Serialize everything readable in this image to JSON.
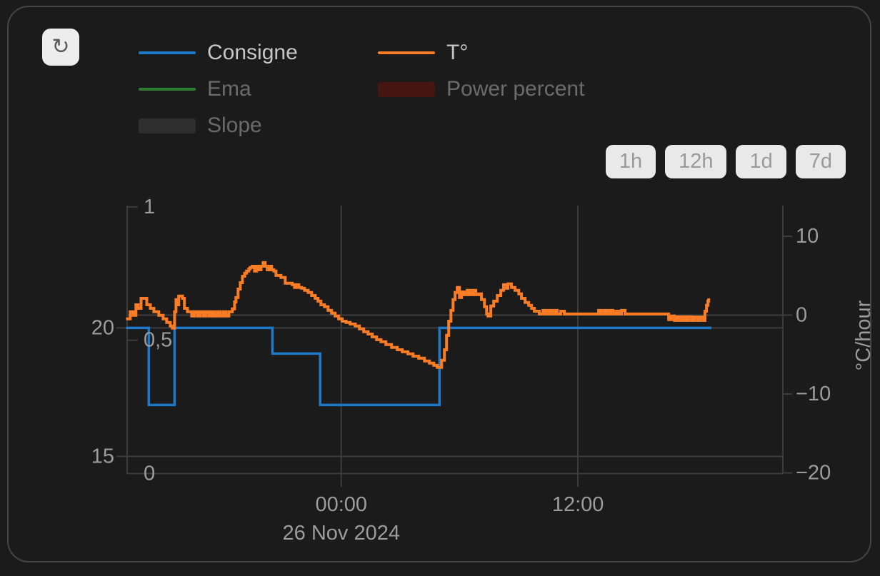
{
  "toolbar": {
    "refresh_icon": "↻"
  },
  "legend": {
    "items": [
      {
        "label": "Consigne",
        "color": "#1e79c8",
        "swatch": "line",
        "active": true
      },
      {
        "label": "T°",
        "color": "#fa7d26",
        "swatch": "line",
        "active": true
      },
      {
        "label": "Ema",
        "color": "#2f7d33",
        "swatch": "line",
        "active": false
      },
      {
        "label": "Power percent",
        "color": "#471512",
        "swatch": "rect",
        "active": false
      },
      {
        "label": "Slope",
        "color": "#2e2e2e",
        "swatch": "rect",
        "active": false
      }
    ]
  },
  "range_buttons": [
    "1h",
    "12h",
    "1d",
    "7d"
  ],
  "colors": {
    "background": "#1b1b1b",
    "card_border": "#454545",
    "grid": "#3c3c3c",
    "axis_text": "#9c9c9c",
    "consigne": "#1e79c8",
    "temperature": "#fa7d26"
  },
  "chart_data": {
    "type": "line",
    "title": "",
    "x_axis": {
      "unit": "hours relative to 26 Nov 2024 00:00",
      "range": [
        -10.91,
        22.39
      ],
      "ticks": [
        {
          "value": 0,
          "label": "00:00"
        },
        {
          "value": 12,
          "label": "12:00"
        }
      ],
      "date_label": "26 Nov 2024",
      "grid": true
    },
    "axes": {
      "temperature": {
        "side": "left-outer",
        "range": [
          14.33,
          24.76
        ],
        "ticks": [
          {
            "value": 20,
            "label": "20"
          },
          {
            "value": 15,
            "label": "15"
          }
        ],
        "grid": true
      },
      "slope": {
        "side": "left-inner",
        "range": [
          0,
          1.005
        ],
        "ticks": [
          {
            "value": 1,
            "label": "1"
          },
          {
            "value": 0.5,
            "label": "0,5"
          },
          {
            "value": 0,
            "label": "0"
          }
        ],
        "grid": false
      },
      "rate": {
        "side": "right",
        "label": "°C/hour",
        "range": [
          -20.09,
          13.89
        ],
        "ticks": [
          {
            "value": 10,
            "label": "10"
          },
          {
            "value": 0,
            "label": "0"
          },
          {
            "value": -10,
            "label": "−10"
          },
          {
            "value": -20,
            "label": "−20"
          }
        ],
        "grid_zero_only": true
      }
    },
    "series": [
      {
        "name": "Consigne",
        "color": "#1e79c8",
        "axis": "temperature",
        "step": true,
        "visible": true,
        "width": 3.5,
        "points": [
          [
            -10.91,
            20
          ],
          [
            -9.76,
            17
          ],
          [
            -8.45,
            20
          ],
          [
            -3.49,
            19
          ],
          [
            -1.07,
            17
          ],
          [
            4.98,
            20
          ],
          [
            18.77,
            20
          ]
        ]
      },
      {
        "name": "T°",
        "color": "#fa7d26",
        "axis": "temperature",
        "step": true,
        "visible": true,
        "width": 4,
        "points": [
          [
            -10.91,
            20.35
          ],
          [
            -10.7,
            20.63
          ],
          [
            -10.55,
            20.49
          ],
          [
            -10.41,
            20.9
          ],
          [
            -10.3,
            20.76
          ],
          [
            -10.15,
            21.15
          ],
          [
            -9.86,
            20.9
          ],
          [
            -9.68,
            20.76
          ],
          [
            -9.5,
            20.63
          ],
          [
            -9.25,
            20.49
          ],
          [
            -9.03,
            20.35
          ],
          [
            -8.85,
            20.21
          ],
          [
            -8.67,
            20.07
          ],
          [
            -8.56,
            19.99
          ],
          [
            -8.45,
            20.63
          ],
          [
            -8.38,
            21.1
          ],
          [
            -8.31,
            20.9
          ],
          [
            -8.24,
            21.24
          ],
          [
            -8.05,
            21.15
          ],
          [
            -7.95,
            20.76
          ],
          [
            -7.8,
            20.63
          ],
          [
            -7.69,
            20.63
          ],
          [
            -7.58,
            20.46
          ],
          [
            -7.44,
            20.63
          ],
          [
            -7.29,
            20.46
          ],
          [
            -7.15,
            20.63
          ],
          [
            -7.0,
            20.46
          ],
          [
            -6.86,
            20.63
          ],
          [
            -6.71,
            20.46
          ],
          [
            -6.57,
            20.63
          ],
          [
            -6.43,
            20.46
          ],
          [
            -6.28,
            20.63
          ],
          [
            -6.14,
            20.46
          ],
          [
            -5.99,
            20.63
          ],
          [
            -5.85,
            20.46
          ],
          [
            -5.7,
            20.63
          ],
          [
            -5.52,
            20.74
          ],
          [
            -5.41,
            21.01
          ],
          [
            -5.34,
            21.18
          ],
          [
            -5.23,
            21.51
          ],
          [
            -5.12,
            21.76
          ],
          [
            -5.01,
            22.01
          ],
          [
            -4.9,
            22.13
          ],
          [
            -4.8,
            22.21
          ],
          [
            -4.69,
            22.29
          ],
          [
            -4.62,
            22.35
          ],
          [
            -4.51,
            22.4
          ],
          [
            -4.4,
            22.21
          ],
          [
            -4.29,
            22.4
          ],
          [
            -4.18,
            22.26
          ],
          [
            -4.07,
            22.4
          ],
          [
            -3.96,
            22.54
          ],
          [
            -3.86,
            22.4
          ],
          [
            -3.75,
            22.26
          ],
          [
            -3.64,
            22.4
          ],
          [
            -3.53,
            22.26
          ],
          [
            -3.42,
            22.21
          ],
          [
            -3.31,
            22.04
          ],
          [
            -3.06,
            21.96
          ],
          [
            -2.84,
            21.74
          ],
          [
            -2.48,
            21.68
          ],
          [
            -2.37,
            21.57
          ],
          [
            -2.26,
            21.68
          ],
          [
            -2.15,
            21.57
          ],
          [
            -2.01,
            21.54
          ],
          [
            -1.86,
            21.46
          ],
          [
            -1.68,
            21.38
          ],
          [
            -1.5,
            21.26
          ],
          [
            -1.32,
            21.15
          ],
          [
            -1.18,
            21.04
          ],
          [
            -1.03,
            20.9
          ],
          [
            -0.85,
            20.82
          ],
          [
            -0.67,
            20.68
          ],
          [
            -0.49,
            20.57
          ],
          [
            -0.31,
            20.46
          ],
          [
            -0.13,
            20.35
          ],
          [
            0.05,
            20.26
          ],
          [
            0.24,
            20.21
          ],
          [
            0.45,
            20.15
          ],
          [
            0.71,
            20.07
          ],
          [
            0.92,
            19.96
          ],
          [
            1.14,
            19.85
          ],
          [
            1.36,
            19.76
          ],
          [
            1.57,
            19.65
          ],
          [
            1.79,
            19.54
          ],
          [
            2.01,
            19.46
          ],
          [
            2.26,
            19.35
          ],
          [
            2.55,
            19.24
          ],
          [
            2.84,
            19.15
          ],
          [
            3.09,
            19.07
          ],
          [
            3.38,
            18.99
          ],
          [
            3.64,
            18.9
          ],
          [
            3.93,
            18.82
          ],
          [
            4.22,
            18.71
          ],
          [
            4.47,
            18.63
          ],
          [
            4.69,
            18.54
          ],
          [
            4.87,
            18.46
          ],
          [
            5.09,
            18.74
          ],
          [
            5.23,
            19.15
          ],
          [
            5.34,
            19.71
          ],
          [
            5.45,
            20.26
          ],
          [
            5.56,
            20.68
          ],
          [
            5.67,
            21.1
          ],
          [
            5.77,
            21.38
          ],
          [
            5.88,
            21.57
          ],
          [
            5.99,
            21.18
          ],
          [
            6.1,
            21.4
          ],
          [
            6.24,
            21.29
          ],
          [
            6.39,
            21.46
          ],
          [
            6.53,
            21.29
          ],
          [
            6.68,
            21.46
          ],
          [
            6.82,
            21.29
          ],
          [
            6.97,
            21.32
          ],
          [
            7.11,
            21.1
          ],
          [
            7.26,
            20.82
          ],
          [
            7.37,
            20.54
          ],
          [
            7.44,
            20.46
          ],
          [
            7.58,
            20.85
          ],
          [
            7.73,
            21.04
          ],
          [
            7.91,
            21.26
          ],
          [
            8.09,
            21.46
          ],
          [
            8.23,
            21.68
          ],
          [
            8.38,
            21.54
          ],
          [
            8.45,
            21.71
          ],
          [
            8.63,
            21.57
          ],
          [
            8.81,
            21.46
          ],
          [
            9.0,
            21.32
          ],
          [
            9.14,
            21.15
          ],
          [
            9.32,
            20.99
          ],
          [
            9.5,
            20.88
          ],
          [
            9.65,
            20.76
          ],
          [
            9.79,
            20.65
          ],
          [
            10.04,
            20.54
          ],
          [
            10.23,
            20.68
          ],
          [
            10.37,
            20.54
          ],
          [
            10.52,
            20.68
          ],
          [
            10.66,
            20.54
          ],
          [
            10.81,
            20.68
          ],
          [
            10.95,
            20.54
          ],
          [
            11.13,
            20.65
          ],
          [
            11.31,
            20.54
          ],
          [
            11.67,
            20.54
          ],
          [
            12.94,
            20.54
          ],
          [
            13.05,
            20.68
          ],
          [
            13.19,
            20.54
          ],
          [
            13.34,
            20.68
          ],
          [
            13.48,
            20.54
          ],
          [
            13.63,
            20.68
          ],
          [
            13.77,
            20.54
          ],
          [
            13.92,
            20.65
          ],
          [
            14.06,
            20.54
          ],
          [
            14.21,
            20.68
          ],
          [
            14.39,
            20.54
          ],
          [
            16.49,
            20.54
          ],
          [
            16.6,
            20.32
          ],
          [
            16.74,
            20.46
          ],
          [
            16.89,
            20.29
          ],
          [
            17.03,
            20.43
          ],
          [
            17.18,
            20.29
          ],
          [
            17.32,
            20.43
          ],
          [
            17.47,
            20.29
          ],
          [
            17.61,
            20.43
          ],
          [
            17.76,
            20.29
          ],
          [
            17.9,
            20.42
          ],
          [
            18.05,
            20.29
          ],
          [
            18.19,
            20.42
          ],
          [
            18.34,
            20.29
          ],
          [
            18.44,
            20.65
          ],
          [
            18.52,
            20.88
          ],
          [
            18.59,
            21.04
          ],
          [
            18.63,
            21.15
          ]
        ]
      },
      {
        "name": "Ema",
        "color": "#2f7d33",
        "axis": "temperature",
        "visible": false,
        "points": []
      },
      {
        "name": "Power percent",
        "color": "#471512",
        "axis": "rate",
        "visible": false,
        "points": []
      },
      {
        "name": "Slope",
        "color": "#2e2e2e",
        "axis": "slope",
        "visible": false,
        "points": []
      }
    ]
  }
}
